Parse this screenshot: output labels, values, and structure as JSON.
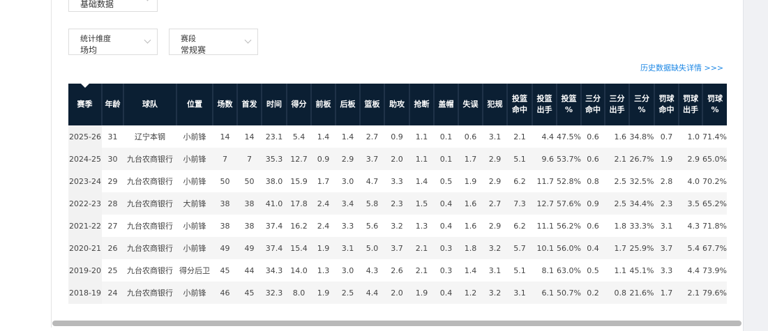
{
  "filters": {
    "data_type": {
      "value": "基础数据"
    },
    "dimension": {
      "label": "统计维度",
      "value": "场均"
    },
    "stage": {
      "label": "赛段",
      "value": "常规赛"
    }
  },
  "history_link": "历史数据缺失详情 >>>",
  "table": {
    "headers": [
      "赛季",
      "年龄",
      "球队",
      "位置",
      "场数",
      "首发",
      "时间",
      "得分",
      "前板",
      "后板",
      "篮板",
      "助攻",
      "抢断",
      "盖帽",
      "失误",
      "犯规",
      "投篮\n命中",
      "投篮\n出手",
      "投篮\n%",
      "三分\n命中",
      "三分\n出手",
      "三分\n%",
      "罚球\n命中",
      "罚球\n出手",
      "罚球\n%"
    ],
    "sorted_column": "赛季",
    "rows": [
      [
        "2025-26",
        "31",
        "辽宁本钢",
        "小前锋",
        "14",
        "14",
        "23.1",
        "5.4",
        "1.4",
        "1.4",
        "2.7",
        "0.9",
        "1.1",
        "0.1",
        "0.6",
        "3.1",
        "2.1",
        "4.4",
        "47.5%",
        "0.6",
        "1.6",
        "34.8%",
        "0.7",
        "1.0",
        "71.4%"
      ],
      [
        "2024-25",
        "30",
        "九台农商银行",
        "小前锋",
        "7",
        "7",
        "35.3",
        "12.7",
        "0.9",
        "2.9",
        "3.7",
        "2.0",
        "1.1",
        "0.1",
        "1.7",
        "2.9",
        "5.1",
        "9.6",
        "53.7%",
        "0.6",
        "2.1",
        "26.7%",
        "1.9",
        "2.9",
        "65.0%"
      ],
      [
        "2023-24",
        "29",
        "九台农商银行",
        "小前锋",
        "50",
        "50",
        "38.0",
        "15.9",
        "1.7",
        "3.0",
        "4.7",
        "3.3",
        "1.4",
        "0.5",
        "1.9",
        "2.9",
        "6.2",
        "11.7",
        "52.8%",
        "0.8",
        "2.5",
        "32.5%",
        "2.8",
        "4.0",
        "70.2%"
      ],
      [
        "2022-23",
        "28",
        "九台农商银行",
        "大前锋",
        "38",
        "38",
        "41.0",
        "17.8",
        "2.4",
        "3.4",
        "5.8",
        "2.3",
        "1.5",
        "0.4",
        "1.6",
        "2.7",
        "7.3",
        "12.7",
        "57.6%",
        "0.9",
        "2.5",
        "34.4%",
        "2.3",
        "3.5",
        "65.2%"
      ],
      [
        "2021-22",
        "27",
        "九台农商银行",
        "小前锋",
        "38",
        "38",
        "37.4",
        "16.2",
        "2.4",
        "3.3",
        "5.6",
        "3.2",
        "1.3",
        "0.4",
        "1.6",
        "2.9",
        "6.2",
        "11.1",
        "56.2%",
        "0.6",
        "1.8",
        "33.3%",
        "3.1",
        "4.3",
        "71.8%"
      ],
      [
        "2020-21",
        "26",
        "九台农商银行",
        "小前锋",
        "49",
        "49",
        "37.4",
        "15.4",
        "1.9",
        "3.1",
        "5.0",
        "3.7",
        "2.1",
        "0.3",
        "1.8",
        "3.2",
        "5.7",
        "10.1",
        "56.0%",
        "0.4",
        "1.7",
        "25.9%",
        "3.7",
        "5.4",
        "67.7%"
      ],
      [
        "2019-20",
        "25",
        "九台农商银行",
        "得分后卫",
        "45",
        "44",
        "34.3",
        "14.0",
        "1.3",
        "3.0",
        "4.3",
        "2.6",
        "2.1",
        "0.3",
        "1.4",
        "3.1",
        "5.1",
        "8.1",
        "63.0%",
        "0.5",
        "1.1",
        "45.1%",
        "3.3",
        "4.4",
        "73.9%"
      ],
      [
        "2018-19",
        "24",
        "九台农商银行",
        "小前锋",
        "46",
        "45",
        "32.3",
        "8.0",
        "1.9",
        "2.5",
        "4.4",
        "2.0",
        "1.9",
        "0.4",
        "1.2",
        "3.2",
        "3.1",
        "6.1",
        "50.7%",
        "0.2",
        "0.8",
        "21.6%",
        "1.7",
        "2.1",
        "79.6%"
      ]
    ]
  }
}
